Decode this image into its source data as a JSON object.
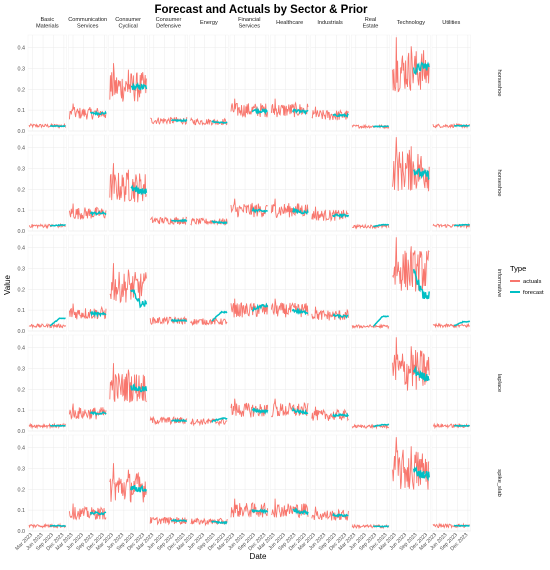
{
  "chart_data": {
    "type": "line",
    "title": "Forecast and Actuals by Sector & Prior",
    "xlabel": "Date",
    "ylabel": "Value",
    "facet_columns": [
      "Basic\nMaterials",
      "Communication\nServices",
      "Consumer\nCyclical",
      "Consumer\nDefensive",
      "Energy",
      "Financial\nServices",
      "Healthcare",
      "Industrials",
      "Real\nEstate",
      "Technology",
      "Utilities"
    ],
    "facet_rows": [
      "horseshoe",
      "horseshoe",
      "informative",
      "laplace",
      "spike_slab"
    ],
    "x_ticks": [
      "Mar 2023",
      "Jun 2023",
      "Sep 2023",
      "Dec 2023"
    ],
    "y_ticks": [
      "0.0",
      "0.1",
      "0.2",
      "0.3",
      "0.4"
    ],
    "ylim": [
      0,
      0.46
    ],
    "legend": {
      "title": "Type",
      "position": "right",
      "entries": [
        {
          "name": "actuals",
          "color": "#F8766D"
        },
        {
          "name": "forecast",
          "color": "#00BFC4"
        }
      ]
    },
    "grid": true,
    "actuals_level": {
      "Basic Materials": 0.025,
      "Communication Services": 0.085,
      "Consumer Cyclical": 0.21,
      "Consumer Defensive": 0.05,
      "Energy": 0.045,
      "Financial Services": 0.1,
      "Healthcare": 0.1,
      "Industrials": 0.075,
      "Real Estate": 0.022,
      "Technology": 0.29,
      "Utilities": 0.025
    },
    "forecast_end": [
      {
        "prior": "horseshoe",
        "values": [
          0.023,
          0.085,
          0.21,
          0.05,
          0.04,
          0.095,
          0.092,
          0.075,
          0.022,
          0.31,
          0.025
        ]
      },
      {
        "prior": "horseshoe",
        "values": [
          0.028,
          0.085,
          0.19,
          0.05,
          0.04,
          0.095,
          0.09,
          0.075,
          0.03,
          0.27,
          0.03
        ]
      },
      {
        "prior": "informative",
        "values": [
          0.06,
          0.08,
          0.13,
          0.05,
          0.09,
          0.12,
          0.09,
          0.07,
          0.07,
          0.17,
          0.045
        ]
      },
      {
        "prior": "laplace",
        "values": [
          0.025,
          0.085,
          0.2,
          0.05,
          0.06,
          0.095,
          0.09,
          0.075,
          0.03,
          0.26,
          0.025
        ]
      },
      {
        "prior": "spike_slab",
        "values": [
          0.025,
          0.085,
          0.2,
          0.05,
          0.04,
          0.095,
          0.09,
          0.075,
          0.022,
          0.27,
          0.025
        ]
      }
    ]
  }
}
